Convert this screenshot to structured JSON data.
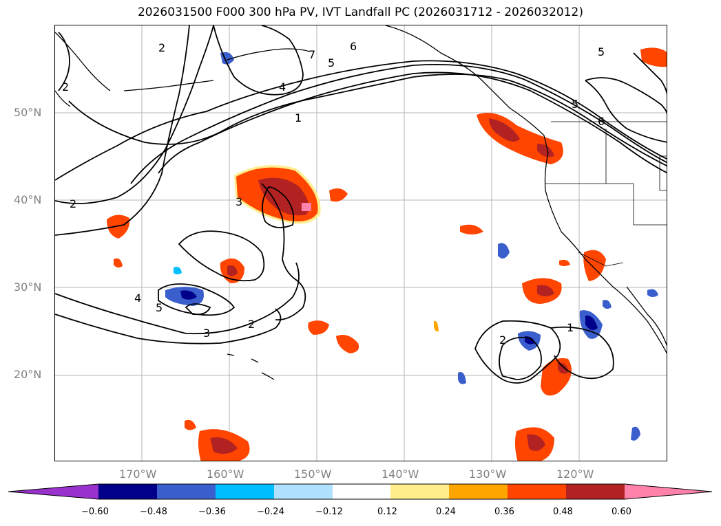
{
  "title": "2026031500 F000 300 hPa PV, IVT Landfall PC (2026031712 - 2026032012)",
  "lat_labels": [
    "50°N",
    "40°N",
    "30°N",
    "20°N"
  ],
  "lon_labels": [
    "170°W",
    "160°W",
    "150°W",
    "140°W",
    "130°W",
    "120°W"
  ],
  "colorbar": {
    "ticks": [
      "−0.60",
      "−0.48",
      "−0.36",
      "−0.24",
      "−0.12",
      "0.12",
      "0.24",
      "0.36",
      "0.48",
      "0.60"
    ],
    "colors": [
      "#9932CC",
      "#00008B",
      "#3A5FCD",
      "#00BFFF",
      "#B0E2FF",
      "#FFFFFF",
      "#FFEC8B",
      "#FFA500",
      "#FF4500",
      "#B22222",
      "#FF82AB"
    ]
  },
  "contour_labels": [
    "1",
    "2",
    "3",
    "4",
    "5",
    "6",
    "7"
  ]
}
